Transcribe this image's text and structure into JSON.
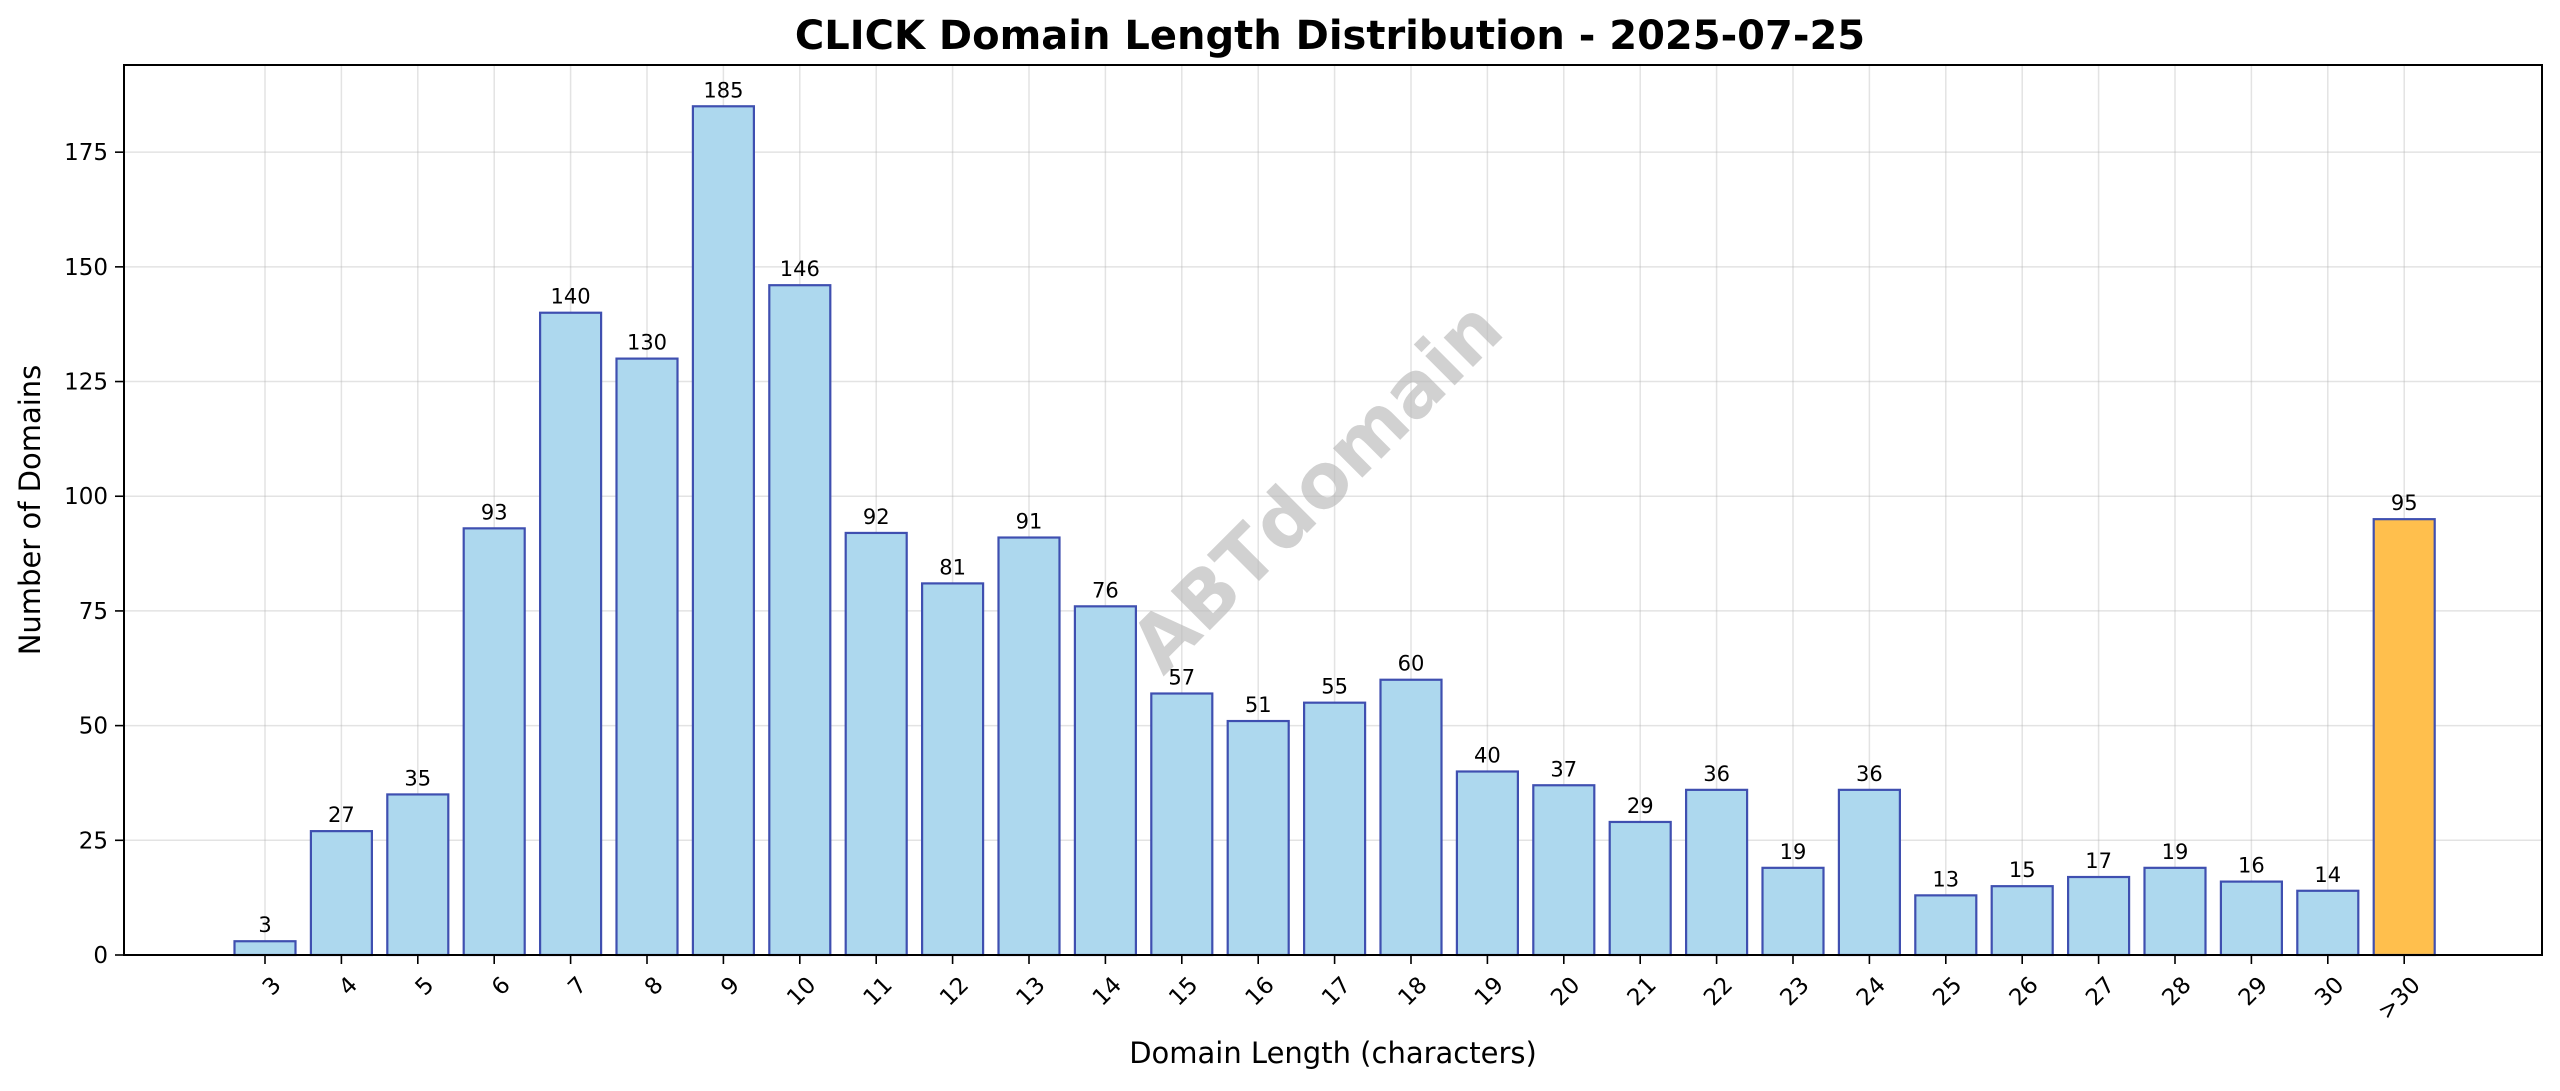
{
  "chart_data": {
    "type": "bar",
    "title": "CLICK Domain Length Distribution - 2025-07-25",
    "xlabel": "Domain Length (characters)",
    "ylabel": "Number of Domains",
    "categories": [
      "3",
      "4",
      "5",
      "6",
      "7",
      "8",
      "9",
      "10",
      "11",
      "12",
      "13",
      "14",
      "15",
      "16",
      "17",
      "18",
      "19",
      "20",
      "21",
      "22",
      "23",
      "24",
      "25",
      "26",
      "27",
      "28",
      "29",
      "30",
      ">30"
    ],
    "values": [
      3,
      27,
      35,
      93,
      140,
      130,
      185,
      146,
      92,
      81,
      91,
      76,
      57,
      51,
      55,
      60,
      40,
      37,
      29,
      36,
      19,
      36,
      13,
      15,
      17,
      19,
      16,
      14,
      95
    ],
    "ylim": [
      0,
      194
    ],
    "yticks": [
      0,
      25,
      50,
      75,
      100,
      125,
      150,
      175
    ],
    "grid": true,
    "bar_color": "#ADD8EE",
    "bar_edge_color": "#3F4FB0",
    "highlight_category": ">30",
    "highlight_color": "#FFBF4D",
    "watermark": "ABTdomain"
  }
}
